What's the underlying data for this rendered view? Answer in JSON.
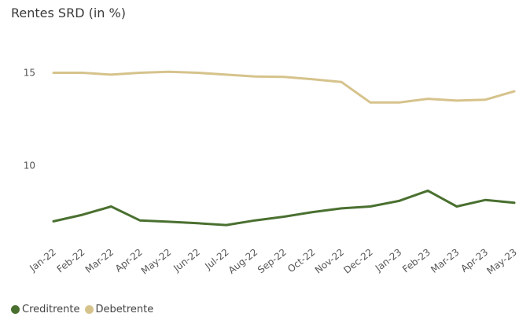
{
  "chart_data": {
    "type": "line",
    "title": "Rentes SRD (in %)",
    "xlabel": "",
    "ylabel": "",
    "categories": [
      "Jan-22",
      "Feb-22",
      "Mar-22",
      "Apr-22",
      "May-22",
      "Jun-22",
      "Jul-22",
      "Aug-22",
      "Sep-22",
      "Oct-22",
      "Nov-22",
      "Dec-22",
      "Jan-23",
      "Feb-23",
      "Mar-23",
      "Apr-23",
      "May-23"
    ],
    "y_ticks": [
      10,
      15
    ],
    "ylim": [
      6,
      16.8
    ],
    "grid": false,
    "legend_position": "bottom-left",
    "series": [
      {
        "name": "Creditrente",
        "color": "#4a7030",
        "values": [
          7.0,
          7.35,
          7.8,
          7.05,
          6.98,
          6.9,
          6.8,
          7.05,
          7.25,
          7.5,
          7.7,
          7.8,
          8.1,
          8.65,
          7.8,
          8.15,
          8.0
        ]
      },
      {
        "name": "Debetrente",
        "color": "#d6c38c",
        "values": [
          15.0,
          15.0,
          14.9,
          15.0,
          15.05,
          15.0,
          14.9,
          14.8,
          14.78,
          14.65,
          14.5,
          13.4,
          13.4,
          13.6,
          13.5,
          13.55,
          14.0
        ]
      }
    ]
  }
}
